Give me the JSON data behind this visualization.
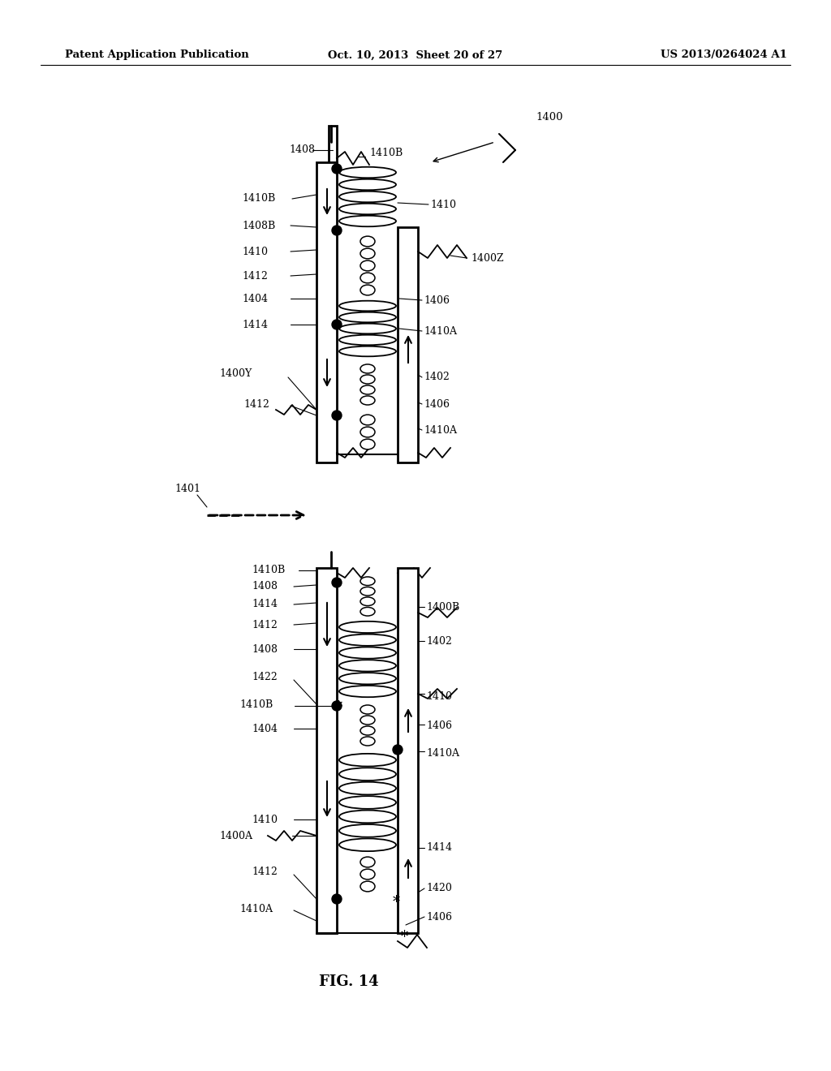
{
  "bg_color": "#ffffff",
  "header_left": "Patent Application Publication",
  "header_mid": "Oct. 10, 2013  Sheet 20 of 27",
  "header_right": "US 2013/0264024 A1",
  "fig_label": "FIG. 14"
}
